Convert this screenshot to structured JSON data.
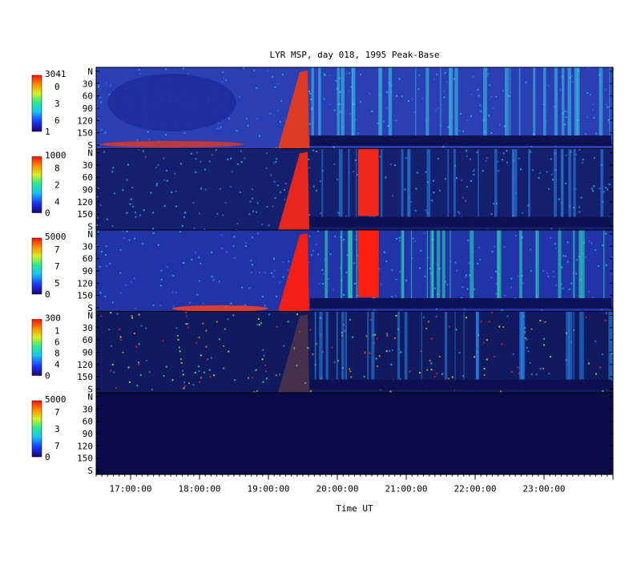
{
  "chart_data": {
    "type": "heatmap",
    "title": "LYR MSP, day 018, 1995 Peak-Base",
    "xlabel": "Time UT",
    "x_ticks": [
      "17:00:00",
      "18:00:00",
      "19:00:00",
      "20:00:00",
      "21:00:00",
      "22:00:00",
      "23:00:00"
    ],
    "x_range_hours": [
      16.5,
      24.0
    ],
    "y_range_deg": [
      0,
      180
    ],
    "y_ticks": [
      "N",
      "30",
      "60",
      "90",
      "120",
      "150",
      "S"
    ],
    "panels": [
      {
        "cb_max": "3041",
        "cb_labels": [
          "0",
          "3",
          "6"
        ],
        "cb_min": "1",
        "data_cutoff_hours": null,
        "colors": {
          "bg": "#2a3fb4",
          "active": "#e63a1e"
        }
      },
      {
        "cb_max": "1000",
        "cb_labels": [
          "8",
          "2",
          "4"
        ],
        "cb_min": "0",
        "data_cutoff_hours": null,
        "colors": {
          "bg": "#14206e",
          "active": "#f0281a"
        }
      },
      {
        "cb_max": "5000",
        "cb_labels": [
          "7",
          "7",
          "5"
        ],
        "cb_min": "0",
        "data_cutoff_hours": null,
        "colors": {
          "bg": "#2133a8",
          "active": "#ff2010"
        }
      },
      {
        "cb_max": "300",
        "cb_labels": [
          "1",
          "6",
          "8",
          "4"
        ],
        "cb_min": "0",
        "data_cutoff_hours": null,
        "colors": {
          "bg": "#101a5e",
          "active": "#e87020"
        }
      },
      {
        "cb_max": "5000",
        "cb_labels": [
          "7",
          "3",
          "7"
        ],
        "cb_min": "0",
        "data_cutoff_hours": 16.5,
        "colors": {
          "bg": "#0a0c4a",
          "active": "#0a0c4a"
        }
      }
    ],
    "events": {
      "auroral_onset_hours": 19.3,
      "auroral_peak_hours": 19.5,
      "bright_band_hours": [
        20.3,
        20.6
      ],
      "dark_band_start_hours": 19.6
    },
    "grid": false,
    "colormap": "rainbow"
  }
}
